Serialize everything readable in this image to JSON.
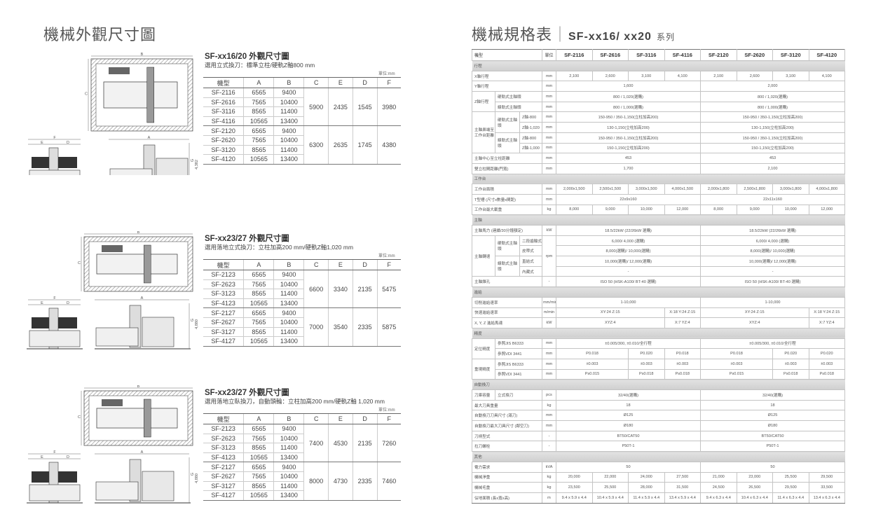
{
  "left_title": "機械外觀尺寸圖",
  "right_title": "機械規格表",
  "right_series": "SF-xx16/ xx20",
  "right_series_suffix": "系列",
  "dimension_sections": [
    {
      "title": "SF-xx16/20 外觀尺寸圖",
      "subtitle": "選用立式換刀：標準立柱/硬軌Z軸800 mm",
      "unit": "單位:mm",
      "headers": [
        "機型",
        "A",
        "B",
        "C",
        "E",
        "D",
        "F"
      ],
      "drawing_labels": {
        "top_width": "B",
        "top_depth": "C",
        "front_width": "F",
        "front_left": "E",
        "front_right": "D",
        "side_width": "A",
        "side_height_letter": "G",
        "side_height": "4,382"
      },
      "groups": [
        {
          "rows": [
            [
              "SF-2116",
              "6565",
              "9400"
            ],
            [
              "SF-2616",
              "7565",
              "10400"
            ],
            [
              "SF-3116",
              "8565",
              "11400"
            ],
            [
              "SF-4116",
              "10565",
              "13400"
            ]
          ],
          "C": "5900",
          "E": "2435",
          "D": "1545",
          "F": "3980"
        },
        {
          "rows": [
            [
              "SF-2120",
              "6565",
              "9400"
            ],
            [
              "SF-2620",
              "7565",
              "10400"
            ],
            [
              "SF-3120",
              "8565",
              "11400"
            ],
            [
              "SF-4120",
              "10565",
              "13400"
            ]
          ],
          "C": "6300",
          "E": "2635",
          "D": "1745",
          "F": "4380"
        }
      ]
    },
    {
      "title": "SF-xx23/27 外觀尺寸圖",
      "subtitle": "選用落地立式換刀：立柱加高200 mm/硬軌Z軸1,020 mm",
      "unit": "單位:mm",
      "headers": [
        "機型",
        "A",
        "B",
        "C",
        "E",
        "D",
        "F"
      ],
      "drawing_labels": {
        "top_width": "B",
        "top_depth": "C",
        "front_width": "F",
        "front_left": "E",
        "front_right": "D",
        "side_width": "A",
        "side_height_letter": "G",
        "side_height": "4,880"
      },
      "groups": [
        {
          "rows": [
            [
              "SF-2123",
              "6565",
              "9400"
            ],
            [
              "SF-2623",
              "7565",
              "10400"
            ],
            [
              "SF-3123",
              "8565",
              "11400"
            ],
            [
              "SF-4123",
              "10565",
              "13400"
            ]
          ],
          "C": "6600",
          "E": "3340",
          "D": "2135",
          "F": "5475"
        },
        {
          "rows": [
            [
              "SF-2127",
              "6565",
              "9400"
            ],
            [
              "SF-2627",
              "7565",
              "10400"
            ],
            [
              "SF-3127",
              "8565",
              "11400"
            ],
            [
              "SF-4127",
              "10565",
              "13400"
            ]
          ],
          "C": "7000",
          "E": "3540",
          "D": "2335",
          "F": "5875"
        }
      ]
    },
    {
      "title": "SF-xx23/27 外觀尺寸圖",
      "subtitle": "選用落地立臥換刀，自動頭輪：立柱加高200 mm/硬軌Z軸 1,020 mm",
      "unit": "單位:mm",
      "headers": [
        "機型",
        "A",
        "B",
        "C",
        "E",
        "D",
        "F"
      ],
      "drawing_labels": {
        "top_width": "B",
        "top_depth": "C",
        "front_width": "F",
        "front_left": "E",
        "front_right": "D",
        "side_width": "A",
        "side_height_letter": "G",
        "side_height": "4,880"
      },
      "groups": [
        {
          "rows": [
            [
              "SF-2123",
              "6565",
              "9400"
            ],
            [
              "SF-2623",
              "7565",
              "10400"
            ],
            [
              "SF-3123",
              "8565",
              "11400"
            ],
            [
              "SF-4123",
              "10565",
              "13400"
            ]
          ],
          "C": "7400",
          "E": "4530",
          "D": "2135",
          "F": "7260"
        },
        {
          "rows": [
            [
              "SF-2127",
              "6565",
              "9400"
            ],
            [
              "SF-2627",
              "7565",
              "10400"
            ],
            [
              "SF-3127",
              "8565",
              "11400"
            ],
            [
              "SF-4127",
              "10565",
              "13400"
            ]
          ],
          "C": "8000",
          "E": "4730",
          "D": "2335",
          "F": "7460"
        }
      ]
    }
  ],
  "spec": {
    "model_label": "機型",
    "unit_label": "單位",
    "models": [
      "SF-2116",
      "SF-2616",
      "SF-3116",
      "SF-4116",
      "SF-2120",
      "SF-2620",
      "SF-3120",
      "SF-4120"
    ],
    "rows": [
      {
        "section": "行程"
      },
      {
        "label": "X軸行程",
        "unit": "mm",
        "values": [
          "2,100",
          "2,600",
          "3,100",
          "4,100",
          "2,100",
          "2,600",
          "3,100",
          "4,100"
        ]
      },
      {
        "label": "Y軸行程",
        "unit": "mm",
        "values": [
          "1,600",
          "2,000"
        ]
      },
      {
        "group": "Z軸行程",
        "rows": [
          {
            "label": "硬軌式主軸頭",
            "unit": "mm",
            "values": [
              "800 / 1,020(選購)",
              "800 / 1,020(選購)"
            ]
          },
          {
            "label": "線軌式主軸頭",
            "unit": "mm",
            "values": [
              "800 / 1,000(選購)",
              "800 / 1,000(選購)"
            ]
          }
        ]
      },
      {
        "group": "主軸鼻端至工作台距離",
        "subgroups": [
          {
            "name": "硬軌式主軸頭",
            "rows": [
              {
                "label": "Z軸-800",
                "unit": "mm",
                "values": [
                  "150-950 / 350-1,150(立柱加高200)",
                  "150-950 / 350-1,150(立柱加高200)"
                ]
              },
              {
                "label": "Z軸-1,020",
                "unit": "mm",
                "values": [
                  "130-1,150(立柱加高200)",
                  "130-1,150(立柱加高200)"
                ]
              }
            ]
          },
          {
            "name": "線軌式主軸頭",
            "rows": [
              {
                "label": "Z軸-800",
                "unit": "mm",
                "values": [
                  "150-950 / 350-1,150(立柱加高200)",
                  "150-950 / 350-1,150(立柱加高200)"
                ]
              },
              {
                "label": "Z軸-1,000",
                "unit": "mm",
                "values": [
                  "150-1,150(立柱加高200)",
                  "150-1,150(立柱加高200)"
                ]
              }
            ]
          }
        ]
      },
      {
        "label": "主軸中心至立柱距離",
        "unit": "mm",
        "values": [
          "453",
          "453"
        ]
      },
      {
        "label": "雙立柱間距離(門寬)",
        "unit": "mm",
        "values": [
          "1,700",
          "2,100"
        ]
      },
      {
        "section": "工作台"
      },
      {
        "label": "工作台面積",
        "unit": "mm",
        "values": [
          "2,000x1,500",
          "2,500x1,500",
          "3,000x1,500",
          "4,000x1,500",
          "2,000x1,800",
          "2,500x1,800",
          "3,000x1,800",
          "4,000x1,800"
        ]
      },
      {
        "label": "T型槽 (尺寸x數量x間距)",
        "unit": "mm",
        "values": [
          "22x9x160",
          "22x11x160"
        ]
      },
      {
        "label": "工作台最大載重",
        "unit": "kg",
        "values": [
          "8,000",
          "9,000",
          "10,000",
          "12,000",
          "8,000",
          "9,000",
          "10,000",
          "12,000"
        ]
      },
      {
        "section": "主軸"
      },
      {
        "label": "主軸馬力 (連續/30分鐘額定)",
        "unit": "kW",
        "values": [
          "18.5/22kW (22/26kW 選購)",
          "18.5/22kW (22/26kW 選購)"
        ]
      },
      {
        "group": "主軸轉速",
        "unit": "rpm",
        "subgroups": [
          {
            "name": "硬軌式主軸頭",
            "rows": [
              {
                "label": "二段齒輪式",
                "values": [
                  "6,000/ 4,000 (選購)",
                  "6,000/ 4,000 (選購)"
                ]
              },
              {
                "label": "皮帶式",
                "values": [
                  "8,000(選購)/ 10,000(選購)",
                  "8,000(選購)/ 10,000(選購)"
                ]
              }
            ]
          },
          {
            "name": "線軌式主軸頭",
            "rows": [
              {
                "label": "直結式",
                "values": [
                  "10,000(選購)/ 12,000(選購)",
                  "10,000(選購)/ 12,000(選購)"
                ]
              },
              {
                "label": "內藏式",
                "values": [
                  "-",
                  "-"
                ]
              }
            ]
          }
        ]
      },
      {
        "label": "主軸錐孔",
        "unit": "-",
        "values": [
          "ISO 50 (HSK-A100/ BT-40 選購)",
          "ISO 50 (HSK-A100/ BT-40 選購)"
        ]
      },
      {
        "section": "進給"
      },
      {
        "label": "切削進給速率",
        "unit": "mm/min",
        "values": [
          "1-10,000",
          "1-10,000"
        ]
      },
      {
        "label": "快速進給速率",
        "unit": "m/min",
        "values": [
          "XY:24  Z:15",
          "X:18 Y:24 Z:15",
          "XY:24  Z:15",
          "X:18 Y:24 Z:15"
        ]
      },
      {
        "label": "X, Y, Z 進給馬達",
        "unit": "kW",
        "values": [
          "XYZ:4",
          "X:7 YZ:4",
          "XYZ:4",
          "X:7 YZ:4"
        ]
      },
      {
        "section": "精度"
      },
      {
        "group": "定位精度",
        "rows": [
          {
            "label": "參照JIS B6333",
            "unit": "mm",
            "values": [
              "±0.005/300, ±0.010/全行程",
              "±0.005/300, ±0.010/全行程"
            ]
          },
          {
            "label": "參照VDI 3441",
            "unit": "mm",
            "values": [
              "P0.018",
              "P0.020",
              "P0.018",
              "P0.018",
              "P0.020",
              "P0.020"
            ]
          }
        ]
      },
      {
        "group": "重現精度",
        "rows": [
          {
            "label": "參照JIS B6333",
            "unit": "mm",
            "values": [
              "±0.003",
              "±0.003",
              "±0.003",
              "±0.003",
              "±0.003",
              "±0.003"
            ]
          },
          {
            "label": "參照VDI 3441",
            "unit": "mm",
            "values": [
              "Ps0.015",
              "Ps0.018",
              "Ps0.018",
              "Ps0.015",
              "Ps0.018",
              "Ps0.018"
            ]
          }
        ]
      },
      {
        "section": "自動換刀"
      },
      {
        "group": "刀庫容量",
        "rows": [
          {
            "label": "立式換刀",
            "unit": "pcs",
            "values": [
              "32/40(選購)",
              "32/40(選購)"
            ]
          }
        ]
      },
      {
        "label": "最大刀具重量",
        "unit": "kg",
        "values": [
          "18",
          "18"
        ]
      },
      {
        "label": "自動換刀刀具尺寸 (滿刀)",
        "unit": "mm",
        "values": [
          "Ø125",
          "Ø125"
        ]
      },
      {
        "label": "自動換刀最大刀具尺寸 (鄰空刀)",
        "unit": "mm",
        "values": [
          "Ø180",
          "Ø180"
        ]
      },
      {
        "label": "刀柄型式",
        "unit": "-",
        "values": [
          "BT50/CAT50",
          "BT50/CAT50"
        ]
      },
      {
        "label": "拉刀螺栓",
        "unit": "-",
        "values": [
          "P50T-1",
          "P50T-1"
        ]
      },
      {
        "section": "其他"
      },
      {
        "label": "電力需求",
        "unit": "kVA",
        "values": [
          "50",
          "50"
        ]
      },
      {
        "label": "機械淨重",
        "unit": "kg",
        "values": [
          "20,000",
          "22,000",
          "24,000",
          "27,500",
          "21,000",
          "23,000",
          "25,500",
          "29,500"
        ]
      },
      {
        "label": "機械毛重",
        "unit": "kg",
        "values": [
          "23,500",
          "25,500",
          "28,000",
          "31,500",
          "24,500",
          "26,500",
          "29,500",
          "33,500"
        ]
      },
      {
        "label": "佔地面積 (長x寬x高)",
        "unit": "m",
        "values": [
          "9.4 x 5.9 x 4.4",
          "10.4 x 5.9 x 4.4",
          "11.4 x 5.9 x 4.4",
          "13.4 x 5.9 x 4.4",
          "9.4 x 6.3 x 4.4",
          "10.4 x 6.3 x 4.4",
          "11.4 x 6.3 x 4.4",
          "13.4 x 6.3 x 4.4"
        ]
      }
    ]
  }
}
